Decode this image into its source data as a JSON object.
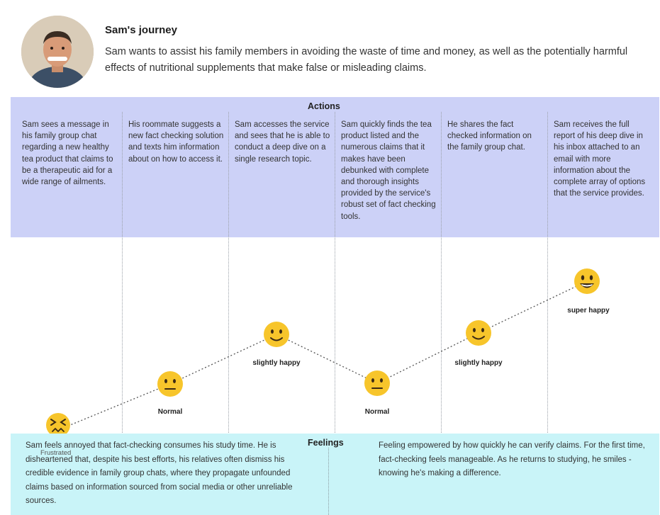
{
  "header": {
    "title": "Sam's journey",
    "description": "Sam wants to assist his family members in avoiding the waste of time and money, as well as the potentially harmful effects of nutritional supplements that make false or misleading claims."
  },
  "actions": {
    "title": "Actions",
    "columns": [
      "Sam sees a message in his family group chat regarding a new healthy tea product that claims to be a therapeutic aid for a wide range of ailments.",
      "His roommate suggests a new fact checking solution and texts him information about on how to access it.",
      "Sam accesses the service and sees that he is able to conduct a deep dive on a single research topic.",
      "Sam quickly finds the tea product listed and the numerous claims that it makes have been debunked with complete and thorough insights provided by the service's robust set of fact checking tools.",
      "He shares the fact checked information on the family group chat.",
      "Sam receives the full report of his deep dive in his inbox attached to an email with more information about the complete array of options that the service provides."
    ]
  },
  "emotions": [
    {
      "label": "Frustrated",
      "face": "frustrated-face"
    },
    {
      "label": "Normal",
      "face": "neutral-face"
    },
    {
      "label": "slightly happy",
      "face": "slightly-smiling-face"
    },
    {
      "label": "Normal",
      "face": "neutral-face"
    },
    {
      "label": "slightly happy",
      "face": "slightly-smiling-face"
    },
    {
      "label": "super happy",
      "face": "grinning-face"
    }
  ],
  "feelings": {
    "title": "Feelings",
    "left": "Sam feels annoyed that fact-checking consumes his study time. He is disheartened that, despite his best efforts, his relatives often dismiss his credible evidence in family group chats, where they propagate unfounded claims based on information sourced from social media or other unreliable sources.",
    "right": "Feeling empowered by how quickly he can verify claims. For the first time, fact-checking feels manageable. As he returns to studying, he smiles - knowing he's making a difference."
  },
  "colors": {
    "actions_band": "#ccd1f7",
    "feelings_band": "#c9f4f8",
    "emoji_yellow": "#f7c52b"
  }
}
